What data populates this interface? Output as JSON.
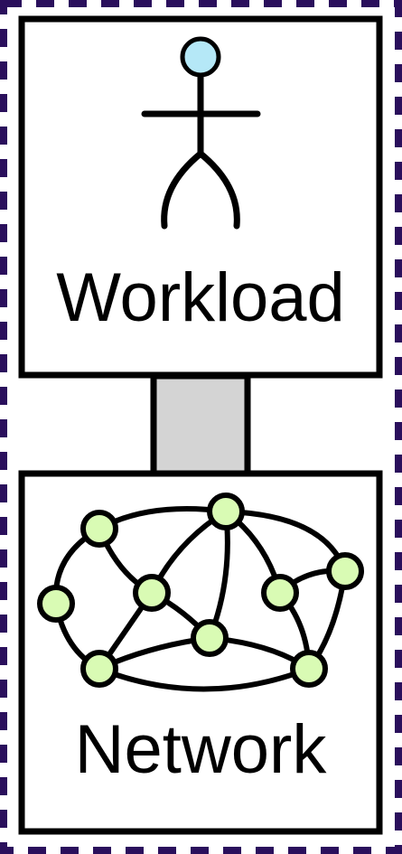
{
  "diagram": {
    "top_box": {
      "label": "Workload",
      "icon": "stick-figure-icon"
    },
    "connector": {
      "kind": "link"
    },
    "bottom_box": {
      "label": "Network",
      "icon": "graph-network-icon"
    }
  },
  "colors": {
    "outer_border": "#2a0f5c",
    "box_stroke": "#000000",
    "box_fill": "#ffffff",
    "connector_fill": "#d4d4d4",
    "head_fill": "#b5e8f7",
    "node_fill": "#d9fbb4",
    "edge_stroke": "#000000"
  }
}
